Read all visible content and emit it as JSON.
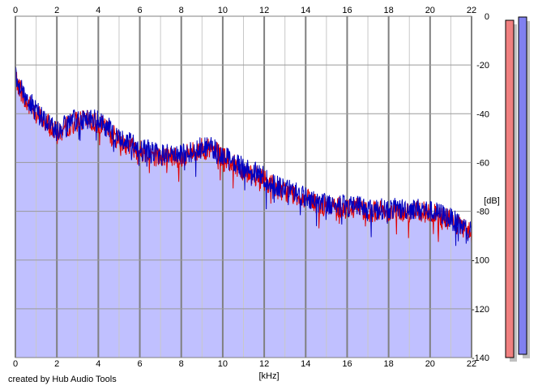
{
  "chart_data": {
    "type": "line",
    "xlabel": "[kHz]",
    "ylabel": "[dB]",
    "xlim": [
      0,
      22
    ],
    "ylim": [
      -140,
      0
    ],
    "x_ticks": [
      0,
      2,
      4,
      6,
      8,
      10,
      12,
      14,
      16,
      18,
      20,
      22
    ],
    "y_ticks": [
      0,
      -20,
      -40,
      -60,
      -80,
      -100,
      -120,
      -140
    ],
    "grid": true,
    "fill_color": "#c0c0ff",
    "x_major_grid_color": "#808080",
    "x_minor_grid_color": "#c8c8c8",
    "series": [
      {
        "color": "#e00000",
        "x": [
          0,
          0.25,
          0.5,
          0.75,
          1,
          1.25,
          1.5,
          1.75,
          2,
          2.25,
          2.5,
          2.75,
          3,
          3.5,
          4,
          4.5,
          5,
          5.5,
          6,
          6.5,
          7,
          7.5,
          8,
          8.5,
          9,
          9.5,
          10,
          10.5,
          11,
          11.5,
          12,
          12.5,
          13,
          13.5,
          14,
          14.5,
          15,
          15.5,
          16,
          16.5,
          17,
          17.5,
          18,
          18.5,
          19,
          19.5,
          20,
          20.5,
          21,
          21.5,
          22
        ],
        "values": [
          -25,
          -30,
          -36,
          -37,
          -39,
          -42,
          -44,
          -46,
          -48,
          -47,
          -45,
          -44,
          -43,
          -43,
          -44,
          -47,
          -51,
          -53,
          -55,
          -56,
          -58,
          -57,
          -58,
          -56,
          -54,
          -55,
          -58,
          -61,
          -63,
          -65,
          -67,
          -70,
          -72,
          -73,
          -75,
          -77,
          -78,
          -78,
          -79,
          -78,
          -80,
          -80,
          -80,
          -80,
          -80,
          -80,
          -81,
          -82,
          -84,
          -87,
          -89
        ]
      },
      {
        "color": "#0000c0",
        "x": [
          0,
          0.25,
          0.5,
          0.75,
          1,
          1.25,
          1.5,
          1.75,
          2,
          2.25,
          2.5,
          2.75,
          3,
          3.5,
          4,
          4.5,
          5,
          5.5,
          6,
          6.5,
          7,
          7.5,
          8,
          8.5,
          9,
          9.5,
          10,
          10.5,
          11,
          11.5,
          12,
          12.5,
          13,
          13.5,
          14,
          14.5,
          15,
          15.5,
          16,
          16.5,
          17,
          17.5,
          18,
          18.5,
          19,
          19.5,
          20,
          20.5,
          21,
          21.5,
          22
        ],
        "values": [
          -24,
          -29,
          -34,
          -36,
          -38,
          -41,
          -43,
          -45,
          -47,
          -46,
          -44,
          -43,
          -42,
          -42,
          -43,
          -46,
          -50,
          -52,
          -54,
          -55,
          -57,
          -56,
          -57,
          -55,
          -53,
          -54,
          -57,
          -60,
          -62,
          -64,
          -66,
          -69,
          -71,
          -72,
          -74,
          -76,
          -77,
          -77,
          -78,
          -77,
          -79,
          -79,
          -79,
          -79,
          -79,
          -79,
          -80,
          -81,
          -83,
          -86,
          -88
        ]
      }
    ]
  },
  "meters": {
    "left_color": "#f08080",
    "right_color": "#8080f0"
  },
  "footer": {
    "credit": "created by Hub Audio Tools"
  }
}
